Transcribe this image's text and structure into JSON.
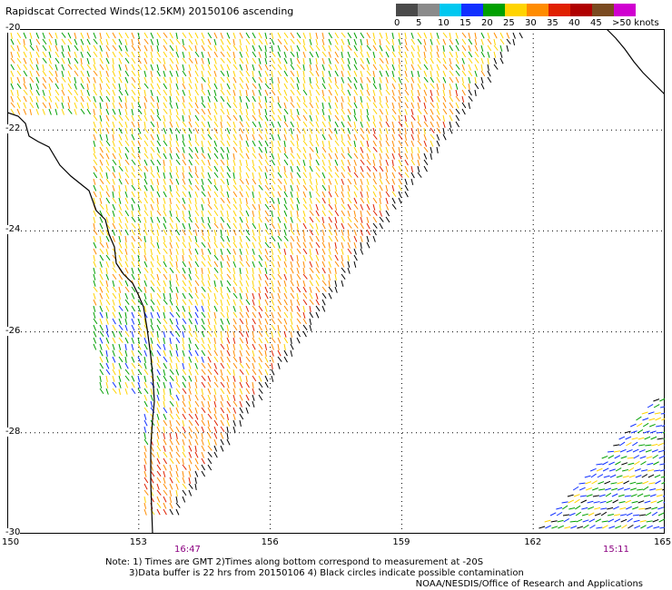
{
  "title": "Rapidscat Corrected Winds(12.5KM) 20150106 ascending",
  "legend": {
    "colors": [
      "#4a4a4a",
      "#8a8a8a",
      "#00c8f0",
      "#1030ff",
      "#00a000",
      "#ffd400",
      "#ff8c00",
      "#e02000",
      "#b00000",
      "#7a4a20",
      "#d000d0",
      "#6000a0"
    ],
    "labels": [
      "0",
      "5",
      "10",
      "15",
      "20",
      "25",
      "30",
      "35",
      "40",
      "45",
      ">50 knots"
    ]
  },
  "y_axis_labels": [
    "-20",
    "-22",
    "-24",
    "-26",
    "-28",
    "-30"
  ],
  "x_axis_labels": [
    "150",
    "153",
    "156",
    "159",
    "162",
    "165"
  ],
  "pass_times": [
    "16:47",
    "15:11"
  ],
  "notes": [
    "Note: 1) Times are GMT 2)Times along bottom correspond to measurement at -20S",
    "3)Data buffer is 22 hrs from 20150106 4) Black circles indicate possible contamination"
  ],
  "credit": "NOAA/NESDIS/Office of Research and Applications"
}
